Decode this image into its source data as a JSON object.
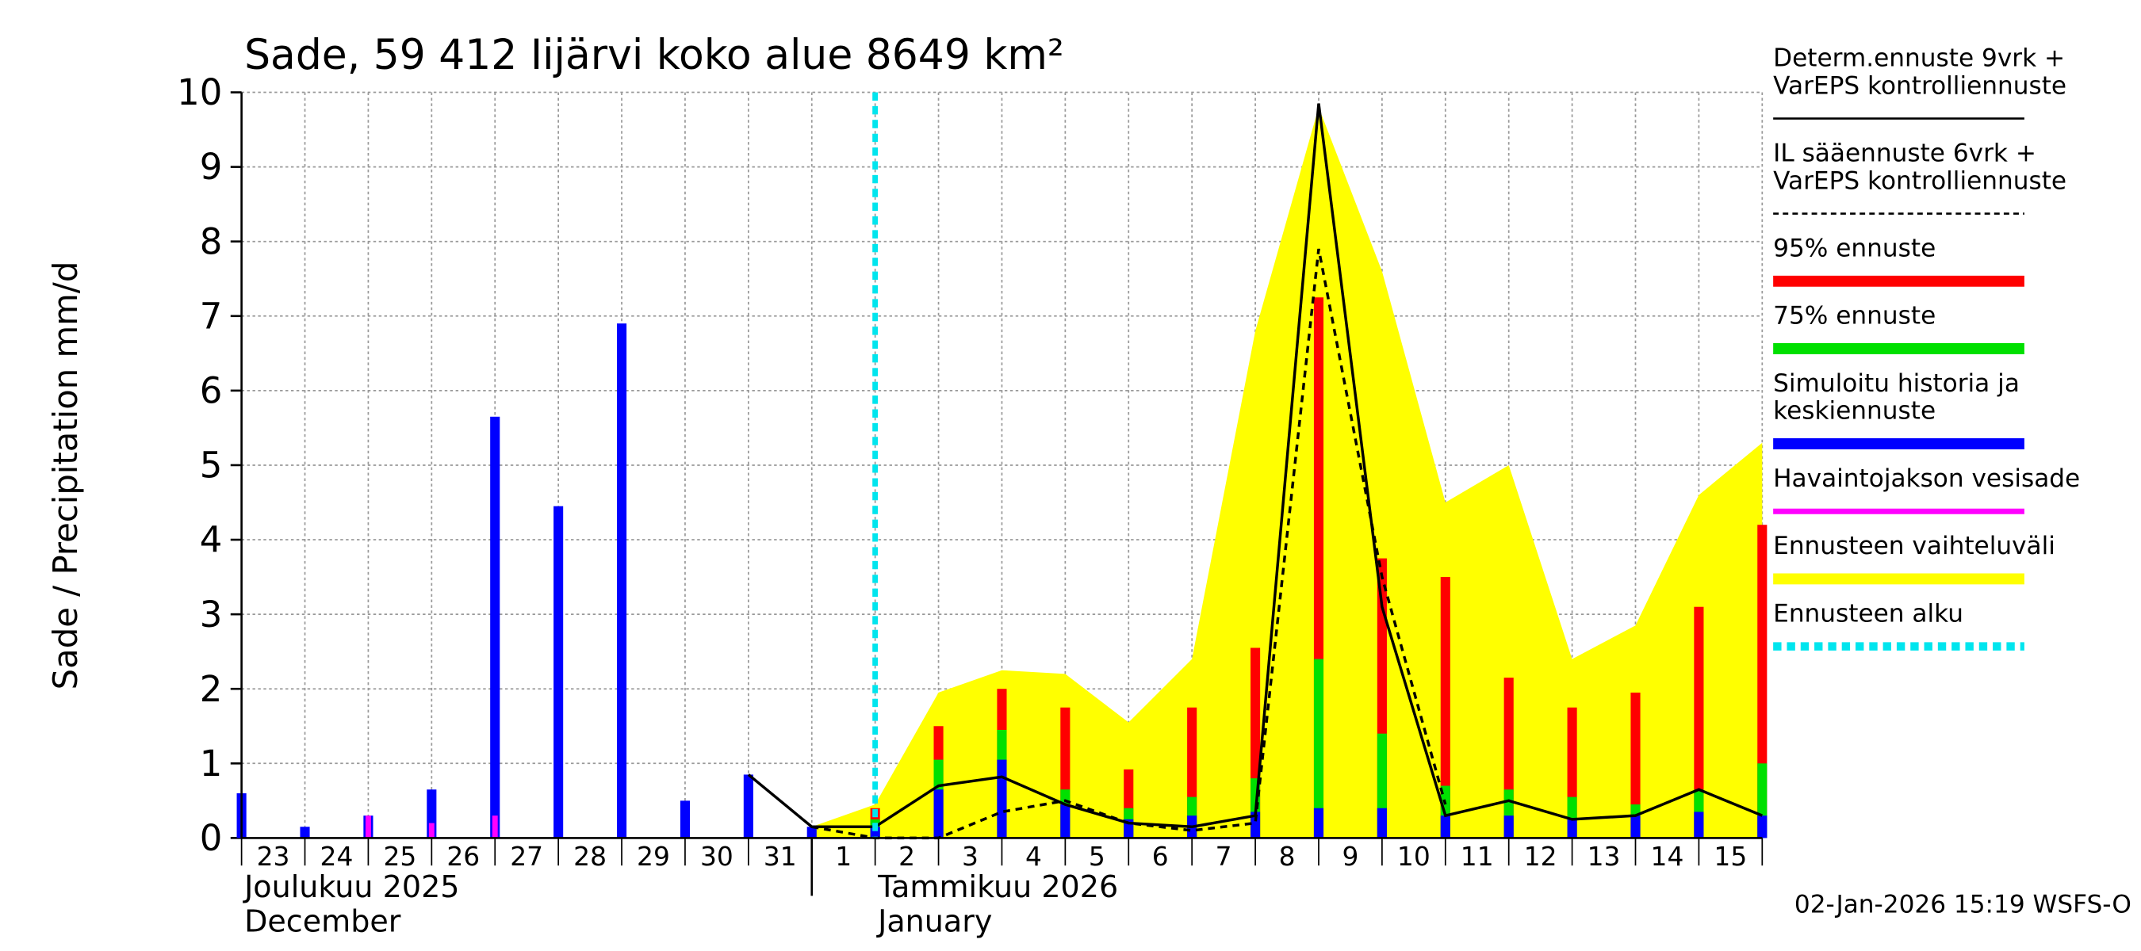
{
  "chart_data": {
    "type": "bar",
    "title": "Sade, 59 412 Iijärvi koko alue 8649 km²",
    "y_label": "Sade / Precipitation   mm/d",
    "categories": [
      "23",
      "24",
      "25",
      "26",
      "27",
      "28",
      "29",
      "30",
      "31",
      "1",
      "2",
      "3",
      "4",
      "5",
      "6",
      "7",
      "8",
      "9",
      "10",
      "11",
      "12",
      "13",
      "14",
      "15",
      null
    ],
    "months": [
      {
        "index": 0,
        "fi": "Joulukuu  2025",
        "en": "December"
      },
      {
        "index": 10,
        "fi": "Tammikuu  2026",
        "en": "January"
      }
    ],
    "timestamp": "02-Jan-2026 15:19 WSFS-O",
    "ylim": [
      0,
      10
    ],
    "yticks": [
      0,
      1,
      2,
      3,
      4,
      5,
      6,
      7,
      8,
      9,
      10
    ],
    "grid": true,
    "series": [
      {
        "name": [
          "Determ.ennuste 9vrk +",
          "VarEPS kontrolliennuste"
        ],
        "style": "line",
        "color": "#000000",
        "values": [
          null,
          null,
          null,
          null,
          null,
          null,
          null,
          null,
          0.85,
          0.15,
          0.15,
          0.7,
          0.82,
          0.45,
          0.2,
          0.15,
          0.3,
          9.85,
          3.1,
          0.3,
          0.5,
          0.25,
          0.3,
          0.65,
          0.3
        ]
      },
      {
        "name": [
          "IL sääennuste 6vrk  +",
          "  VarEPS kontrolliennuste"
        ],
        "style": "dashed",
        "color": "#000000",
        "values": [
          null,
          null,
          null,
          null,
          null,
          null,
          null,
          null,
          null,
          0.15,
          0,
          0,
          0.35,
          0.5,
          0.2,
          0.1,
          0.2,
          7.9,
          3.5,
          0.45,
          null,
          null,
          null,
          null,
          null
        ]
      },
      {
        "name": [
          "95% ennuste"
        ],
        "style": "bar",
        "color": "#ff0000",
        "values": [
          null,
          null,
          null,
          null,
          null,
          null,
          null,
          null,
          null,
          null,
          0.4,
          1.5,
          2.0,
          1.75,
          0.92,
          1.75,
          2.55,
          7.25,
          3.75,
          3.5,
          2.15,
          1.75,
          1.95,
          3.1,
          4.2
        ]
      },
      {
        "name": [
          "75% ennuste"
        ],
        "style": "bar",
        "color": "#00e000",
        "values": [
          null,
          null,
          null,
          null,
          null,
          null,
          null,
          null,
          null,
          null,
          0.25,
          1.05,
          1.45,
          0.65,
          0.4,
          0.55,
          0.8,
          2.4,
          1.4,
          0.7,
          0.65,
          0.55,
          0.45,
          0.65,
          1.0
        ]
      },
      {
        "name": [
          "Simuloitu historia ja",
          "keskiennuste"
        ],
        "style": "bar",
        "color": "#0000ff",
        "values": [
          0.6,
          0.15,
          0.3,
          0.65,
          5.65,
          4.45,
          6.9,
          0.5,
          0.85,
          0.15,
          0.15,
          0.65,
          1.05,
          0.45,
          0.25,
          0.3,
          0.35,
          0.4,
          0.4,
          0.3,
          0.3,
          0.25,
          0.3,
          0.35,
          0.3
        ]
      },
      {
        "name": [
          "Havaintojakson vesisade"
        ],
        "style": "thinbar",
        "color": "#ff00ff",
        "values": [
          null,
          null,
          0.3,
          0.2,
          0.3,
          null,
          null,
          null,
          null,
          null,
          null,
          null,
          null,
          null,
          null,
          null,
          null,
          null,
          null,
          null,
          null,
          null,
          null,
          null,
          null
        ]
      },
      {
        "name": [
          "Ennusteen vaihteluväli"
        ],
        "style": "area",
        "color": "#ffff00",
        "values": [
          null,
          null,
          null,
          null,
          null,
          null,
          null,
          null,
          null,
          0.15,
          0.45,
          1.95,
          2.25,
          2.2,
          1.55,
          2.4,
          6.8,
          9.8,
          7.6,
          4.5,
          5.0,
          2.4,
          2.85,
          4.6,
          5.3
        ]
      }
    ],
    "forecast_start": {
      "name": [
        "Ennusteen alku"
      ],
      "color": "#00e5ee",
      "x": 10
    }
  }
}
